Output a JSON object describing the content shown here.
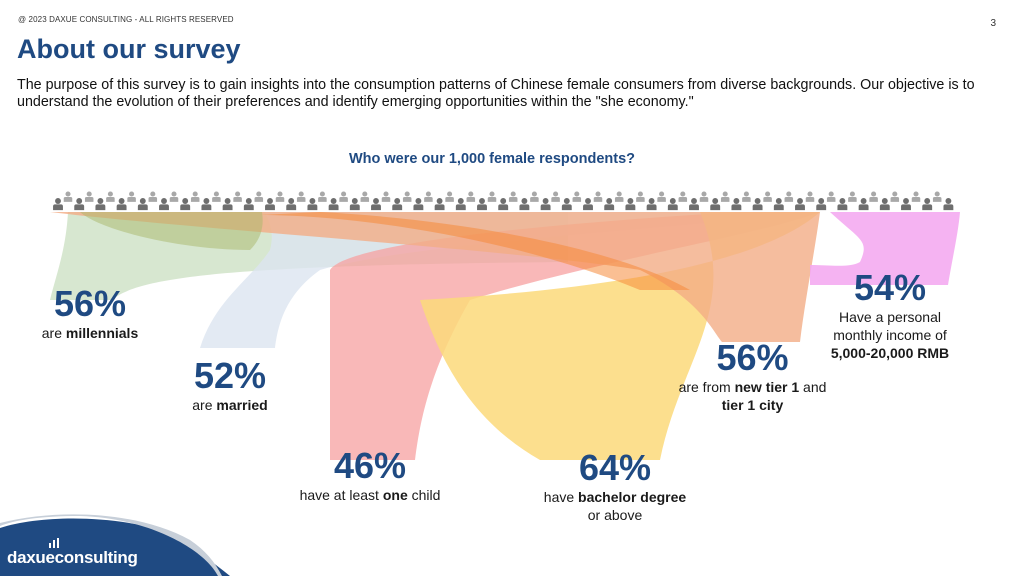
{
  "header": {
    "copyright": "@ 2023 DAXUE CONSULTING - ALL RIGHTS RESERVED",
    "page_number": "3",
    "title": "About our survey",
    "intro": "The purpose of this survey is to gain insights into the consumption patterns of Chinese female consumers from diverse backgrounds. Our objective is to understand the evolution of their preferences and identify emerging opportunities within the \"she economy.\""
  },
  "survey": {
    "question": "Who were our 1,000 female respondents?",
    "people_icon": "person-icon",
    "stats": [
      {
        "id": "millennials",
        "percent": "56%",
        "value": 56,
        "color": "#c9dfc0",
        "desc": [
          {
            "text": "are "
          },
          {
            "text": "millennials",
            "bold": true
          }
        ]
      },
      {
        "id": "married",
        "percent": "52%",
        "value": 52,
        "color": "#d7e2ef",
        "desc": [
          {
            "text": "are "
          },
          {
            "text": "married",
            "bold": true
          }
        ]
      },
      {
        "id": "child",
        "percent": "46%",
        "value": 46,
        "color": "#f7a0a0",
        "desc": [
          {
            "text": "have at least "
          },
          {
            "text": "one",
            "bold": true
          },
          {
            "text": " child"
          }
        ]
      },
      {
        "id": "bachelor",
        "percent": "64%",
        "value": 64,
        "color": "#fbd97a",
        "desc": [
          {
            "text": "have "
          },
          {
            "text": "bachelor degree",
            "bold": true
          },
          {
            "text": "\nor above"
          }
        ]
      },
      {
        "id": "city",
        "percent": "56%",
        "value": 56,
        "color": "#f3ad86",
        "desc": [
          {
            "text": "are from "
          },
          {
            "text": "new tier 1",
            "bold": true
          },
          {
            "text": " and\n"
          },
          {
            "text": "tier 1 city",
            "bold": true
          }
        ]
      },
      {
        "id": "income",
        "percent": "54%",
        "value": 54,
        "color": "#f3a6f0",
        "desc": [
          {
            "text": "Have a personal\nmonthly income of\n"
          },
          {
            "text": "5,000-20,000 RMB",
            "bold": true
          }
        ]
      }
    ]
  },
  "footer": {
    "logo_text": "daxueconsulting",
    "brand_color": "#1f4a82"
  }
}
